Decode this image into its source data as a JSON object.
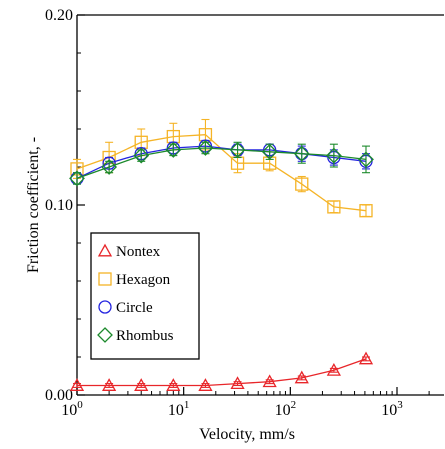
{
  "chart_data": {
    "type": "line",
    "xlabel": "Velocity, mm/s",
    "ylabel": "Friction coefficient, -",
    "xscale": "log",
    "xlim": [
      1,
      3000
    ],
    "ylim": [
      0.0,
      0.2
    ],
    "x_ticks": [
      {
        "value": 1,
        "base": "10",
        "exp": "0"
      },
      {
        "value": 10,
        "base": "10",
        "exp": "1"
      },
      {
        "value": 100,
        "base": "10",
        "exp": "2"
      },
      {
        "value": 1000,
        "base": "10",
        "exp": "3"
      }
    ],
    "y_ticks": [
      {
        "value": 0.0,
        "label": "0.00"
      },
      {
        "value": 0.1,
        "label": "0.10"
      },
      {
        "value": 0.2,
        "label": "0.20"
      }
    ],
    "grid": false,
    "legend_position": "lower-left",
    "x": [
      1,
      2,
      4,
      8,
      16,
      32,
      64,
      128,
      256,
      512
    ],
    "series": [
      {
        "name": "Nontex",
        "marker": "triangle",
        "color": "#e8262a",
        "values": [
          0.005,
          0.005,
          0.005,
          0.005,
          0.005,
          0.006,
          0.007,
          0.009,
          0.013,
          0.019
        ],
        "errors": [
          0.001,
          0.001,
          0.001,
          0.001,
          0.001,
          0.001,
          0.001,
          0.001,
          0.001,
          0.001
        ]
      },
      {
        "name": "Hexagon",
        "marker": "square",
        "color": "#f5b427",
        "values": [
          0.119,
          0.125,
          0.133,
          0.136,
          0.137,
          0.122,
          0.122,
          0.111,
          0.099,
          0.097
        ],
        "errors": [
          0.005,
          0.008,
          0.007,
          0.007,
          0.008,
          0.005,
          0.004,
          0.004,
          0.003,
          0.003
        ]
      },
      {
        "name": "Circle",
        "marker": "circle",
        "color": "#2424e0",
        "values": [
          0.114,
          0.122,
          0.127,
          0.13,
          0.131,
          0.129,
          0.129,
          0.127,
          0.125,
          0.123
        ],
        "errors": [
          0.003,
          0.003,
          0.003,
          0.003,
          0.003,
          0.003,
          0.003,
          0.004,
          0.004,
          0.004
        ]
      },
      {
        "name": "Rhombus",
        "marker": "diamond",
        "color": "#1c8a2c",
        "values": [
          0.114,
          0.12,
          0.126,
          0.129,
          0.13,
          0.129,
          0.128,
          0.127,
          0.126,
          0.124
        ],
        "errors": [
          0.003,
          0.003,
          0.003,
          0.003,
          0.003,
          0.004,
          0.004,
          0.005,
          0.006,
          0.007
        ]
      }
    ],
    "legend_order": [
      "Nontex",
      "Hexagon",
      "Circle",
      "Rhombus"
    ]
  }
}
